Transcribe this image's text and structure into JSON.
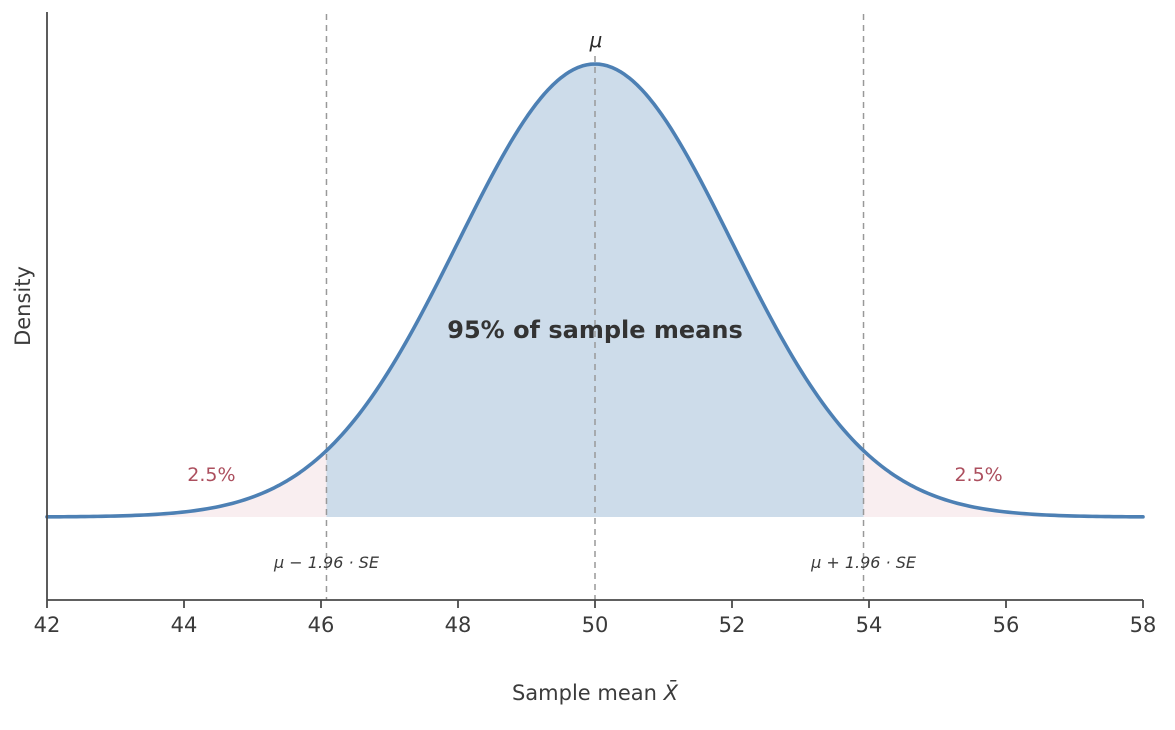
{
  "chart_data": {
    "type": "area",
    "title": "",
    "xlabel_prefix": "Sample mean ",
    "xlabel_var": "X̄",
    "ylabel": "Density",
    "xlim": [
      42,
      58
    ],
    "x_ticks": [
      42,
      44,
      46,
      48,
      50,
      52,
      54,
      56,
      58
    ],
    "mu": 50,
    "se": 2,
    "z": 1.96,
    "bounds": {
      "lower": 46.08,
      "upper": 53.92
    },
    "annotations": {
      "mu_label": "μ",
      "center_label": "95% of sample means",
      "left_tail_label": "2.5%",
      "right_tail_label": "2.5%",
      "lower_bound_label": "μ − 1.96 · SE",
      "upper_bound_label": "μ + 1.96 · SE"
    },
    "colors": {
      "curve": "#4d80b4",
      "center_fill": "#cddcea",
      "tail_fill": "#f9eef0",
      "dashed_line": "#999999",
      "axis": "#4a4a4a",
      "tick_text": "#3b3b3b",
      "tail_label": "#ac4f5e",
      "center_label": "#333333"
    },
    "grid": "off",
    "legend": "none"
  }
}
